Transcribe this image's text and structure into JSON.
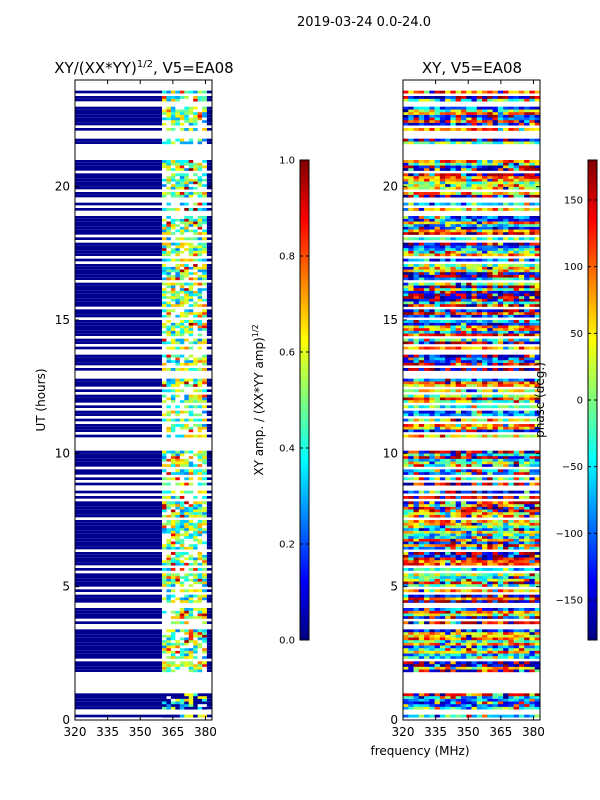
{
  "figure_title": "2019-03-24 0.0-24.0",
  "shared_xlabel": "frequency (MHz)",
  "colors": {
    "flagged_band": "#00008f",
    "data_gap": "#ffffff",
    "axis": "#000000"
  },
  "jet_stops": [
    "#00007f",
    "#0000ff",
    "#007fff",
    "#00ffff",
    "#7fff7f",
    "#ffff00",
    "#ff7f00",
    "#ff0000",
    "#7f0000"
  ],
  "chart_data": [
    {
      "type": "heatmap",
      "id": "amp",
      "title_main": "XY/(XX*YY)",
      "title_sup": "1/2",
      "title_tail": ", V5=EA08",
      "ylabel": "UT (hours)",
      "x_range": [
        320,
        383
      ],
      "x_ticks": [
        320,
        335,
        350,
        365,
        380
      ],
      "y_range": [
        0,
        24
      ],
      "y_ticks": [
        0,
        5,
        10,
        15,
        20
      ],
      "colorbar": {
        "label_main": "XY amp. / (XX*YY amp)",
        "label_sup": "1/2",
        "range": [
          0.0,
          1.0
        ],
        "ticks": [
          "0.0",
          "0.2",
          "0.4",
          "0.6",
          "0.8",
          "1.0"
        ],
        "tick_values": [
          0.0,
          0.2,
          0.4,
          0.6,
          0.8,
          1.0
        ]
      },
      "flagged_freq_ranges_mhz": [
        [
          320,
          360
        ],
        [
          380.5,
          383
        ]
      ],
      "active_freq_range_mhz": [
        360,
        380.5
      ]
    },
    {
      "type": "heatmap",
      "id": "phase",
      "title_main": "XY, V5=EA08",
      "title_sup": "",
      "title_tail": "",
      "ylabel": "",
      "x_range": [
        320,
        383
      ],
      "x_ticks": [
        320,
        335,
        350,
        365,
        380
      ],
      "y_range": [
        0,
        24
      ],
      "y_ticks": [
        0,
        5,
        10,
        15,
        20
      ],
      "colorbar": {
        "label_main": "phase (deg.)",
        "label_sup": "",
        "range": [
          -180,
          180
        ],
        "ticks": [
          "−150",
          "−100",
          "−50",
          "0",
          "50",
          "100",
          "150"
        ],
        "tick_values": [
          -150,
          -100,
          -50,
          0,
          50,
          100,
          150
        ]
      }
    }
  ]
}
